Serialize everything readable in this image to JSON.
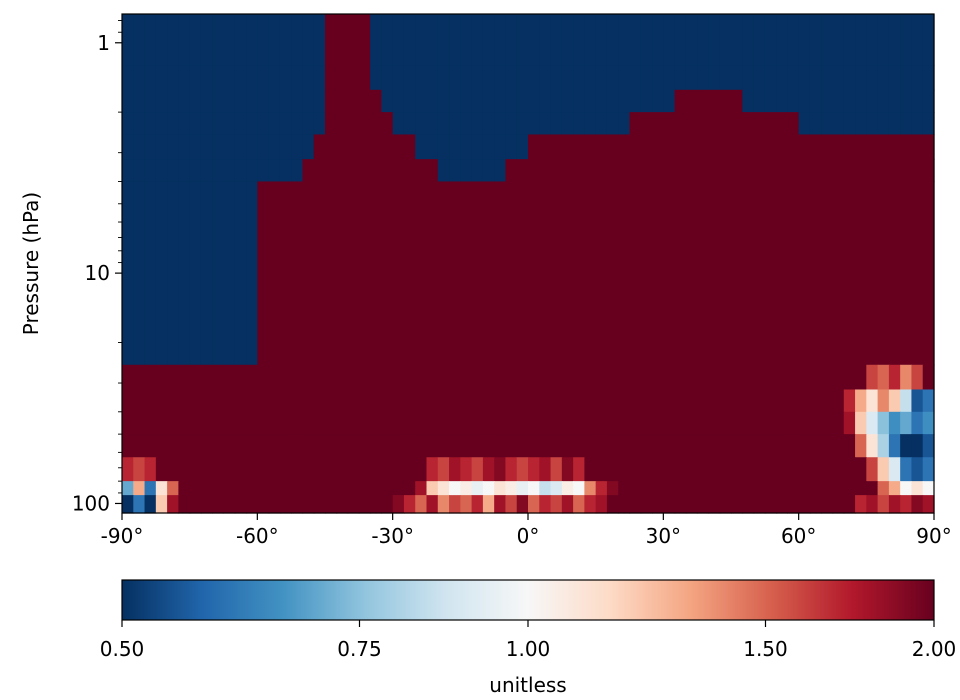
{
  "chart_data": {
    "type": "heatmap",
    "title": "",
    "xlabel": "",
    "ylabel": "Pressure (hPa)",
    "x_ticks": [
      "-90°",
      "-60°",
      "-30°",
      "0°",
      "30°",
      "60°",
      "90°"
    ],
    "y_ticks": [
      "1",
      "10",
      "100"
    ],
    "x_range": [
      -90,
      90
    ],
    "y_range": [
      0.75,
      110
    ],
    "y_scale": "log",
    "colorbar": {
      "label": "unitless",
      "ticks": [
        "0.50",
        "0.75",
        "1.00",
        "1.50",
        "2.00"
      ],
      "range": [
        0.5,
        2.0
      ],
      "scale": "log",
      "colormap": "RdBu_r",
      "colors": [
        "#053061",
        "#2166ac",
        "#4393c3",
        "#92c5de",
        "#d1e5f0",
        "#f7f7f7",
        "#fddbc7",
        "#f4a582",
        "#d6604d",
        "#b2182b",
        "#67001f"
      ]
    },
    "lat_edges": [
      -90,
      -87.5,
      -85,
      -82.5,
      -80,
      -77.5,
      -75,
      -72.5,
      -70,
      -67.5,
      -65,
      -62.5,
      -60,
      -57.5,
      -55,
      -52.5,
      -50,
      -47.5,
      -45,
      -42.5,
      -40,
      -37.5,
      -35,
      -32.5,
      -30,
      -27.5,
      -25,
      -22.5,
      -20,
      -17.5,
      -15,
      -12.5,
      -10,
      -7.5,
      -5,
      -2.5,
      0,
      2.5,
      5,
      7.5,
      10,
      12.5,
      15,
      17.5,
      20,
      22.5,
      25,
      27.5,
      30,
      32.5,
      35,
      37.5,
      40,
      42.5,
      45,
      47.5,
      50,
      52.5,
      55,
      57.5,
      60,
      62.5,
      65,
      67.5,
      70,
      72.5,
      75,
      77.5,
      80,
      82.5,
      85,
      87.5,
      90
    ],
    "pressure_edges": [
      0.75,
      1.25,
      1.6,
      2.0,
      2.5,
      3.2,
      4.0,
      25,
      32,
      40,
      50,
      63,
      80,
      92,
      110
    ],
    "values_by_level": [
      [
        0.5,
        0.5,
        0.5,
        0.5,
        0.5,
        0.5,
        0.5,
        0.5,
        0.5,
        0.5,
        0.5,
        0.5,
        0.5,
        0.5,
        0.5,
        0.5,
        0.5,
        0.5,
        2.0,
        2.0,
        2.0,
        2.0,
        0.5,
        0.5,
        0.5,
        0.5,
        0.5,
        0.5,
        0.5,
        0.5,
        0.5,
        0.5,
        0.5,
        0.5,
        0.5,
        0.5,
        0.5,
        0.5,
        0.5,
        0.5,
        0.5,
        0.5,
        0.5,
        0.5,
        0.5,
        0.5,
        0.5,
        0.5,
        0.5,
        0.5,
        0.5,
        0.5,
        0.5,
        0.5,
        0.5,
        0.5,
        0.5,
        0.5,
        0.5,
        0.5,
        0.5,
        0.5,
        0.5,
        0.5,
        0.5,
        0.5,
        0.5,
        0.5,
        0.5,
        0.5,
        0.5,
        0.5
      ],
      [
        0.5,
        0.5,
        0.5,
        0.5,
        0.5,
        0.5,
        0.5,
        0.5,
        0.5,
        0.5,
        0.5,
        0.5,
        0.5,
        0.5,
        0.5,
        0.5,
        0.5,
        0.5,
        2.0,
        2.0,
        2.0,
        2.0,
        0.5,
        0.5,
        0.5,
        0.5,
        0.5,
        0.5,
        0.5,
        0.5,
        0.5,
        0.5,
        0.5,
        0.5,
        0.5,
        0.5,
        0.5,
        0.5,
        0.5,
        0.5,
        0.5,
        0.5,
        0.5,
        0.5,
        0.5,
        0.5,
        0.5,
        0.5,
        0.5,
        0.5,
        0.5,
        0.5,
        0.5,
        0.5,
        0.5,
        0.5,
        0.5,
        0.5,
        0.5,
        0.5,
        0.5,
        0.5,
        0.5,
        0.5,
        0.5,
        0.5,
        0.5,
        0.5,
        0.5,
        0.5,
        0.5,
        0.5
      ],
      [
        0.5,
        0.5,
        0.5,
        0.5,
        0.5,
        0.5,
        0.5,
        0.5,
        0.5,
        0.5,
        0.5,
        0.5,
        0.5,
        0.5,
        0.5,
        0.5,
        0.5,
        0.5,
        2.0,
        2.0,
        2.0,
        2.0,
        2.0,
        0.5,
        0.5,
        0.5,
        0.5,
        0.5,
        0.5,
        0.5,
        0.5,
        0.5,
        0.5,
        0.5,
        0.5,
        0.5,
        0.5,
        0.5,
        0.5,
        0.5,
        0.5,
        0.5,
        0.5,
        0.5,
        0.5,
        0.5,
        0.5,
        0.5,
        0.5,
        2.0,
        2.0,
        2.0,
        2.0,
        2.0,
        2.0,
        0.5,
        0.5,
        0.5,
        0.5,
        0.5,
        0.5,
        0.5,
        0.5,
        0.5,
        0.5,
        0.5,
        0.5,
        0.5,
        0.5,
        0.5,
        0.5,
        0.5
      ],
      [
        0.5,
        0.5,
        0.5,
        0.5,
        0.5,
        0.5,
        0.5,
        0.5,
        0.5,
        0.5,
        0.5,
        0.5,
        0.5,
        0.5,
        0.5,
        0.5,
        0.5,
        0.5,
        2.0,
        2.0,
        2.0,
        2.0,
        2.0,
        2.0,
        0.5,
        0.5,
        0.5,
        0.5,
        0.5,
        0.5,
        0.5,
        0.5,
        0.5,
        0.5,
        0.5,
        0.5,
        0.5,
        0.5,
        0.5,
        0.5,
        0.5,
        0.5,
        0.5,
        0.5,
        0.5,
        2.0,
        2.0,
        2.0,
        2.0,
        2.0,
        2.0,
        2.0,
        2.0,
        2.0,
        2.0,
        2.0,
        2.0,
        2.0,
        2.0,
        2.0,
        0.5,
        0.5,
        0.5,
        0.5,
        0.5,
        0.5,
        0.5,
        0.5,
        0.5,
        0.5,
        0.5,
        0.5
      ],
      [
        0.5,
        0.5,
        0.5,
        0.5,
        0.5,
        0.5,
        0.5,
        0.5,
        0.5,
        0.5,
        0.5,
        0.5,
        0.5,
        0.5,
        0.5,
        0.5,
        0.5,
        2.0,
        2.0,
        2.0,
        2.0,
        2.0,
        2.0,
        2.0,
        2.0,
        2.0,
        0.5,
        0.5,
        0.5,
        0.5,
        0.5,
        0.5,
        0.5,
        0.5,
        0.5,
        0.5,
        2.0,
        2.0,
        2.0,
        2.0,
        2.0,
        2.0,
        2.0,
        2.0,
        2.0,
        2.0,
        2.0,
        2.0,
        2.0,
        2.0,
        2.0,
        2.0,
        2.0,
        2.0,
        2.0,
        2.0,
        2.0,
        2.0,
        2.0,
        2.0,
        2.0,
        2.0,
        2.0,
        2.0,
        2.0,
        2.0,
        2.0,
        2.0,
        2.0,
        2.0,
        2.0,
        2.0
      ],
      [
        0.5,
        0.5,
        0.5,
        0.5,
        0.5,
        0.5,
        0.5,
        0.5,
        0.5,
        0.5,
        0.5,
        0.5,
        0.5,
        0.5,
        0.5,
        0.5,
        2.0,
        2.0,
        2.0,
        2.0,
        2.0,
        2.0,
        2.0,
        2.0,
        2.0,
        2.0,
        2.0,
        2.0,
        0.5,
        0.5,
        0.5,
        0.5,
        0.5,
        0.5,
        2.0,
        2.0,
        2.0,
        2.0,
        2.0,
        2.0,
        2.0,
        2.0,
        2.0,
        2.0,
        2.0,
        2.0,
        2.0,
        2.0,
        2.0,
        2.0,
        2.0,
        2.0,
        2.0,
        2.0,
        2.0,
        2.0,
        2.0,
        2.0,
        2.0,
        2.0,
        2.0,
        2.0,
        2.0,
        2.0,
        2.0,
        2.0,
        2.0,
        2.0,
        2.0,
        2.0,
        2.0,
        2.0
      ],
      [
        0.5,
        0.5,
        0.5,
        0.5,
        0.5,
        0.5,
        0.5,
        0.5,
        0.5,
        0.5,
        0.5,
        0.5,
        2.0,
        2.0,
        2.0,
        2.0,
        2.0,
        2.0,
        2.0,
        2.0,
        2.0,
        2.0,
        2.0,
        2.0,
        2.0,
        2.0,
        2.0,
        2.0,
        2.0,
        2.0,
        2.0,
        2.0,
        2.0,
        2.0,
        2.0,
        2.0,
        2.0,
        2.0,
        2.0,
        2.0,
        2.0,
        2.0,
        2.0,
        2.0,
        2.0,
        2.0,
        2.0,
        2.0,
        2.0,
        2.0,
        2.0,
        2.0,
        2.0,
        2.0,
        2.0,
        2.0,
        2.0,
        2.0,
        2.0,
        2.0,
        2.0,
        2.0,
        2.0,
        2.0,
        2.0,
        2.0,
        2.0,
        2.0,
        2.0,
        2.0,
        2.0,
        2.0
      ],
      [
        2.0,
        2.0,
        2.0,
        2.0,
        2.0,
        2.0,
        2.0,
        2.0,
        2.0,
        2.0,
        2.0,
        2.0,
        2.0,
        2.0,
        2.0,
        2.0,
        2.0,
        2.0,
        2.0,
        2.0,
        2.0,
        2.0,
        2.0,
        2.0,
        2.0,
        2.0,
        2.0,
        2.0,
        2.0,
        2.0,
        2.0,
        2.0,
        2.0,
        2.0,
        2.0,
        2.0,
        2.0,
        2.0,
        2.0,
        2.0,
        2.0,
        2.0,
        2.0,
        2.0,
        2.0,
        2.0,
        2.0,
        2.0,
        2.0,
        2.0,
        2.0,
        2.0,
        2.0,
        2.0,
        2.0,
        2.0,
        2.0,
        2.0,
        2.0,
        2.0,
        2.0,
        2.0,
        2.0,
        2.0,
        2.0,
        2.0,
        1.6,
        1.5,
        1.7,
        1.4,
        1.6,
        2.0
      ],
      [
        2.0,
        2.0,
        2.0,
        2.0,
        2.0,
        2.0,
        2.0,
        2.0,
        2.0,
        2.0,
        2.0,
        2.0,
        2.0,
        2.0,
        2.0,
        2.0,
        2.0,
        2.0,
        2.0,
        2.0,
        2.0,
        2.0,
        2.0,
        2.0,
        2.0,
        2.0,
        2.0,
        2.0,
        2.0,
        2.0,
        2.0,
        2.0,
        2.0,
        2.0,
        2.0,
        2.0,
        2.0,
        2.0,
        2.0,
        2.0,
        2.0,
        2.0,
        2.0,
        2.0,
        2.0,
        2.0,
        2.0,
        2.0,
        2.0,
        2.0,
        2.0,
        2.0,
        2.0,
        2.0,
        2.0,
        2.0,
        2.0,
        2.0,
        2.0,
        2.0,
        2.0,
        2.0,
        2.0,
        2.0,
        1.7,
        1.3,
        1.1,
        1.4,
        1.2,
        0.85,
        0.55,
        0.6
      ],
      [
        2.0,
        2.0,
        2.0,
        2.0,
        2.0,
        2.0,
        2.0,
        2.0,
        2.0,
        2.0,
        2.0,
        2.0,
        2.0,
        2.0,
        2.0,
        2.0,
        2.0,
        2.0,
        2.0,
        2.0,
        2.0,
        2.0,
        2.0,
        2.0,
        2.0,
        2.0,
        2.0,
        2.0,
        2.0,
        2.0,
        2.0,
        2.0,
        2.0,
        2.0,
        2.0,
        2.0,
        2.0,
        2.0,
        2.0,
        2.0,
        2.0,
        2.0,
        2.0,
        2.0,
        2.0,
        2.0,
        2.0,
        2.0,
        2.0,
        2.0,
        2.0,
        2.0,
        2.0,
        2.0,
        2.0,
        2.0,
        2.0,
        2.0,
        2.0,
        2.0,
        2.0,
        2.0,
        2.0,
        2.0,
        1.8,
        1.2,
        0.9,
        0.75,
        0.65,
        0.7,
        0.6,
        0.65
      ],
      [
        2.0,
        2.0,
        2.0,
        2.0,
        2.0,
        2.0,
        2.0,
        2.0,
        2.0,
        2.0,
        2.0,
        2.0,
        2.0,
        2.0,
        2.0,
        2.0,
        2.0,
        2.0,
        2.0,
        2.0,
        2.0,
        2.0,
        2.0,
        2.0,
        2.0,
        2.0,
        2.0,
        2.0,
        2.0,
        2.0,
        2.0,
        2.0,
        2.0,
        2.0,
        2.0,
        2.0,
        2.0,
        2.0,
        2.0,
        2.0,
        2.0,
        2.0,
        2.0,
        2.0,
        2.0,
        2.0,
        2.0,
        2.0,
        2.0,
        2.0,
        2.0,
        2.0,
        2.0,
        2.0,
        2.0,
        2.0,
        2.0,
        2.0,
        2.0,
        2.0,
        2.0,
        2.0,
        2.0,
        2.0,
        2.0,
        1.5,
        1.1,
        0.8,
        0.6,
        0.5,
        0.5,
        0.55
      ],
      [
        1.7,
        1.6,
        1.7,
        2.0,
        2.0,
        2.0,
        2.0,
        2.0,
        2.0,
        2.0,
        2.0,
        2.0,
        2.0,
        2.0,
        2.0,
        2.0,
        2.0,
        2.0,
        2.0,
        2.0,
        2.0,
        2.0,
        2.0,
        2.0,
        2.0,
        2.0,
        2.0,
        1.7,
        1.6,
        1.8,
        1.7,
        1.6,
        1.8,
        1.9,
        1.7,
        1.6,
        1.7,
        1.8,
        1.6,
        1.9,
        1.7,
        2.0,
        2.0,
        2.0,
        2.0,
        2.0,
        2.0,
        2.0,
        2.0,
        2.0,
        2.0,
        2.0,
        2.0,
        2.0,
        2.0,
        2.0,
        2.0,
        2.0,
        2.0,
        2.0,
        2.0,
        2.0,
        2.0,
        2.0,
        2.0,
        2.0,
        1.6,
        1.2,
        0.9,
        0.6,
        0.55,
        0.6
      ],
      [
        0.7,
        1.3,
        0.6,
        1.1,
        1.5,
        2.0,
        2.0,
        2.0,
        2.0,
        2.0,
        2.0,
        2.0,
        2.0,
        2.0,
        2.0,
        2.0,
        2.0,
        2.0,
        2.0,
        2.0,
        2.0,
        2.0,
        2.0,
        2.0,
        2.0,
        2.0,
        1.8,
        1.2,
        1.1,
        1.0,
        1.05,
        0.95,
        1.0,
        1.1,
        1.05,
        0.95,
        1.0,
        0.85,
        0.9,
        1.05,
        1.0,
        1.4,
        1.7,
        1.9,
        2.0,
        2.0,
        2.0,
        2.0,
        2.0,
        2.0,
        2.0,
        2.0,
        2.0,
        2.0,
        2.0,
        2.0,
        2.0,
        2.0,
        2.0,
        2.0,
        2.0,
        2.0,
        2.0,
        2.0,
        2.0,
        2.0,
        2.0,
        1.5,
        1.3,
        1.0,
        1.1,
        1.0
      ],
      [
        0.5,
        0.6,
        0.5,
        1.2,
        1.8,
        2.0,
        2.0,
        2.0,
        2.0,
        2.0,
        2.0,
        2.0,
        2.0,
        2.0,
        2.0,
        2.0,
        2.0,
        2.0,
        2.0,
        2.0,
        2.0,
        2.0,
        2.0,
        2.0,
        1.9,
        1.7,
        1.5,
        1.8,
        1.4,
        1.6,
        1.5,
        1.7,
        1.3,
        1.8,
        1.6,
        1.9,
        1.5,
        1.7,
        1.6,
        1.8,
        1.5,
        1.7,
        1.8,
        2.0,
        2.0,
        2.0,
        2.0,
        2.0,
        2.0,
        2.0,
        2.0,
        2.0,
        2.0,
        2.0,
        2.0,
        2.0,
        2.0,
        2.0,
        2.0,
        2.0,
        2.0,
        2.0,
        2.0,
        2.0,
        2.0,
        1.7,
        1.8,
        1.6,
        1.8,
        1.7,
        1.9,
        1.8
      ]
    ]
  }
}
